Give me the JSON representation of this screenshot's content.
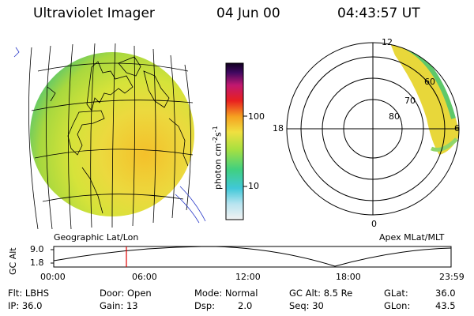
{
  "header": {
    "instrument": "Ultraviolet Imager",
    "date": "04 Jun 00",
    "time": "04:43:57 UT"
  },
  "colorbar": {
    "label": "photon cm",
    "label_sup1": "-2",
    "label_mid": "s",
    "label_sup2": "-1",
    "ticks": [
      "100",
      "10"
    ]
  },
  "polar_plot": {
    "mlt_labels": [
      "12",
      "18",
      "6",
      "0"
    ],
    "mlat_labels": [
      "60",
      "70",
      "80"
    ]
  },
  "panel_labels": {
    "left": "Geographic Lat/Lon",
    "right": "Apex MLat/MLT"
  },
  "orbit": {
    "ylabel": "GC Alt",
    "y_ticks": [
      "9.0",
      "1.8"
    ],
    "x_ticks": [
      "00:00",
      "06:00",
      "12:00",
      "18:00",
      "23:59"
    ],
    "marker_color": "#e00000"
  },
  "info": {
    "flt": "Flt: LBHS",
    "ip": "IP: 36.0",
    "door": "Door: Open",
    "gain": "Gain: 13",
    "mode": "Mode: Normal",
    "dsp_label": "Dsp:",
    "dsp_value": "2.0",
    "gc_alt": "GC Alt: 8.5 Re",
    "seq": "Seq: 30",
    "glat_label": "GLat:",
    "glat_value": "36.0",
    "glon_label": "GLon:",
    "glon_value": "43.5"
  }
}
